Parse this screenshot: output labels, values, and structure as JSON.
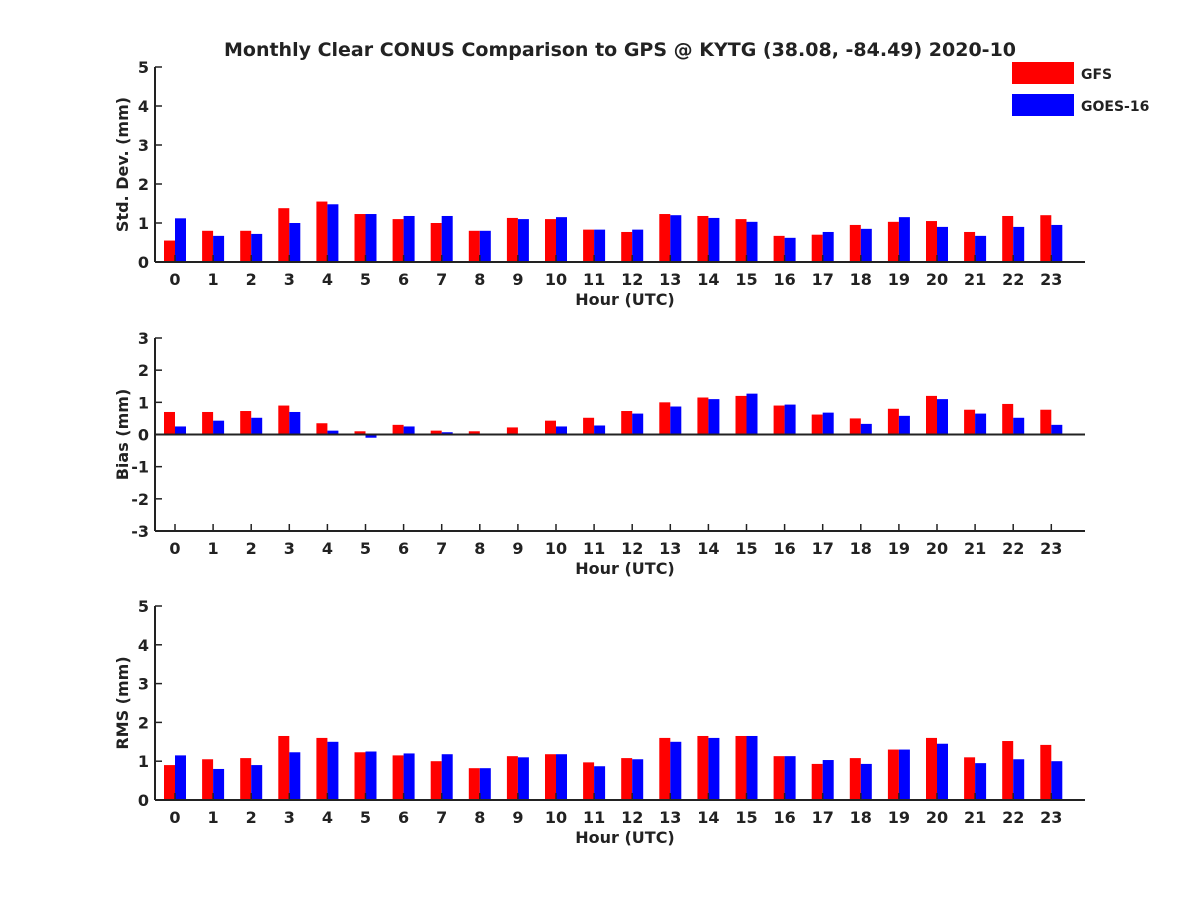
{
  "chart_data": {
    "title": "Monthly Clear CONUS Comparison to GPS @ KYTG (38.08, -84.49) 2020-10",
    "legend": {
      "placement": "top-right",
      "entries": [
        "GFS",
        "GOES-16"
      ]
    },
    "colors": {
      "GFS": "#ff0000",
      "GOES-16": "#0000ff",
      "axis": "#222222"
    },
    "panels": [
      {
        "type": "bar",
        "ylabel": "Std. Dev. (mm)",
        "xlabel": "Hour (UTC)",
        "ylim": [
          0,
          5
        ],
        "yticks": [
          0,
          1,
          2,
          3,
          4,
          5
        ],
        "categories": [
          "0",
          "1",
          "2",
          "3",
          "4",
          "5",
          "6",
          "7",
          "8",
          "9",
          "10",
          "11",
          "12",
          "13",
          "14",
          "15",
          "16",
          "17",
          "18",
          "19",
          "20",
          "21",
          "22",
          "23"
        ],
        "series": [
          {
            "name": "GFS",
            "values": [
              0.55,
              0.8,
              0.8,
              1.38,
              1.55,
              1.23,
              1.1,
              1.0,
              0.8,
              1.13,
              1.1,
              0.83,
              0.77,
              1.23,
              1.18,
              1.1,
              0.67,
              0.7,
              0.95,
              1.03,
              1.05,
              0.77,
              1.18,
              1.2
            ]
          },
          {
            "name": "GOES-16",
            "values": [
              1.12,
              0.67,
              0.72,
              1.0,
              1.48,
              1.23,
              1.18,
              1.18,
              0.8,
              1.1,
              1.15,
              0.83,
              0.83,
              1.2,
              1.13,
              1.03,
              0.62,
              0.77,
              0.85,
              1.15,
              0.9,
              0.67,
              0.9,
              0.95
            ]
          }
        ]
      },
      {
        "type": "bar",
        "ylabel": "Bias (mm)",
        "xlabel": "Hour (UTC)",
        "ylim": [
          -3,
          3
        ],
        "yticks": [
          -3,
          -2,
          -1,
          0,
          1,
          2,
          3
        ],
        "categories": [
          "0",
          "1",
          "2",
          "3",
          "4",
          "5",
          "6",
          "7",
          "8",
          "9",
          "10",
          "11",
          "12",
          "13",
          "14",
          "15",
          "16",
          "17",
          "18",
          "19",
          "20",
          "21",
          "22",
          "23"
        ],
        "series": [
          {
            "name": "GFS",
            "values": [
              0.7,
              0.7,
              0.73,
              0.9,
              0.35,
              0.1,
              0.3,
              0.12,
              0.1,
              0.22,
              0.43,
              0.52,
              0.73,
              1.0,
              1.15,
              1.2,
              0.9,
              0.62,
              0.5,
              0.8,
              1.2,
              0.77,
              0.95,
              0.77
            ]
          },
          {
            "name": "GOES-16",
            "values": [
              0.25,
              0.43,
              0.52,
              0.7,
              0.12,
              -0.1,
              0.25,
              0.07,
              -0.03,
              0.0,
              0.25,
              0.28,
              0.65,
              0.87,
              1.1,
              1.27,
              0.93,
              0.68,
              0.33,
              0.58,
              1.1,
              0.65,
              0.52,
              0.3
            ]
          }
        ]
      },
      {
        "type": "bar",
        "ylabel": "RMS (mm)",
        "xlabel": "Hour (UTC)",
        "ylim": [
          0,
          5
        ],
        "yticks": [
          0,
          1,
          2,
          3,
          4,
          5
        ],
        "categories": [
          "0",
          "1",
          "2",
          "3",
          "4",
          "5",
          "6",
          "7",
          "8",
          "9",
          "10",
          "11",
          "12",
          "13",
          "14",
          "15",
          "16",
          "17",
          "18",
          "19",
          "20",
          "21",
          "22",
          "23"
        ],
        "series": [
          {
            "name": "GFS",
            "values": [
              0.9,
              1.05,
              1.08,
              1.65,
              1.6,
              1.23,
              1.15,
              1.0,
              0.82,
              1.13,
              1.18,
              0.97,
              1.08,
              1.6,
              1.65,
              1.65,
              1.13,
              0.93,
              1.08,
              1.3,
              1.6,
              1.1,
              1.52,
              1.42
            ]
          },
          {
            "name": "GOES-16",
            "values": [
              1.15,
              0.8,
              0.9,
              1.23,
              1.5,
              1.25,
              1.2,
              1.18,
              0.82,
              1.1,
              1.18,
              0.87,
              1.05,
              1.5,
              1.6,
              1.65,
              1.13,
              1.03,
              0.93,
              1.3,
              1.45,
              0.95,
              1.05,
              1.0
            ]
          }
        ]
      }
    ]
  }
}
